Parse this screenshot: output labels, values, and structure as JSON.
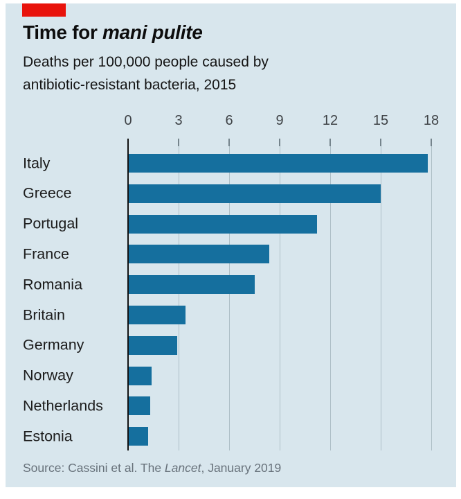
{
  "header": {
    "title_plain": "Time for ",
    "title_italic": "mani pulite",
    "subtitle_line1": "Deaths per 100,000 people caused by",
    "subtitle_line2": "antibiotic-resistant bacteria, 2015"
  },
  "chart_data": {
    "type": "bar",
    "orientation": "horizontal",
    "title": "Time for mani pulite",
    "subtitle": "Deaths per 100,000 people caused by antibiotic-resistant bacteria, 2015",
    "categories": [
      "Italy",
      "Greece",
      "Portugal",
      "France",
      "Romania",
      "Britain",
      "Germany",
      "Norway",
      "Netherlands",
      "Estonia"
    ],
    "values": [
      17.8,
      15.0,
      11.2,
      8.4,
      7.5,
      3.4,
      2.9,
      1.4,
      1.3,
      1.2
    ],
    "x_ticks": [
      0,
      3,
      6,
      9,
      12,
      15,
      18
    ],
    "xlim": [
      0,
      18
    ],
    "grid": true,
    "legend": false,
    "value_axis_position": "top"
  },
  "source": {
    "prefix": "Source: Cassini et al. The ",
    "italic": "Lancet",
    "suffix": ", January 2019"
  },
  "colors": {
    "card_bg": "#d8e6ed",
    "red_tab": "#e8130c",
    "bar": "#156f9e",
    "gridline": "#aebfc7",
    "tick_stub": "#75848c",
    "axis_line": "#111111",
    "title_text": "#0d0d0d",
    "subtitle_text": "#141414",
    "label_text": "#1c1c1c",
    "tick_text": "#3f4347",
    "source_text": "#67717a"
  }
}
